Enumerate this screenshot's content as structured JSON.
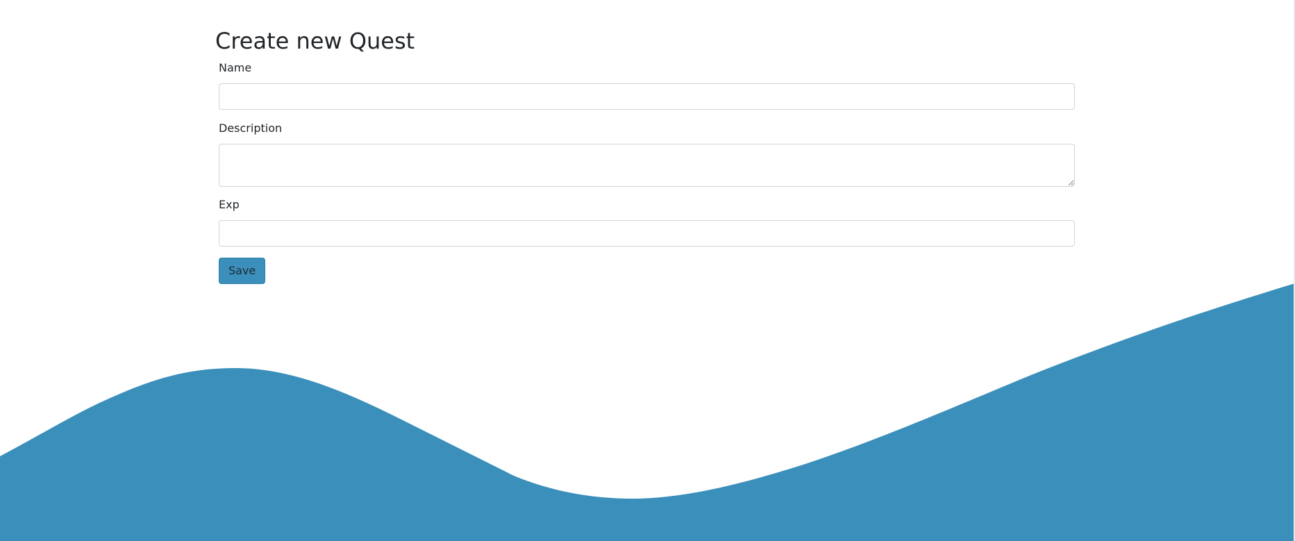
{
  "page": {
    "title": "Create new Quest"
  },
  "form": {
    "name": {
      "label": "Name",
      "value": "",
      "placeholder": ""
    },
    "description": {
      "label": "Description",
      "value": "",
      "placeholder": ""
    },
    "exp": {
      "label": "Exp",
      "value": "",
      "placeholder": ""
    },
    "save_label": "Save"
  },
  "theme": {
    "accent": "#3b8fbb",
    "background": "#ffffff",
    "text": "#212529"
  }
}
